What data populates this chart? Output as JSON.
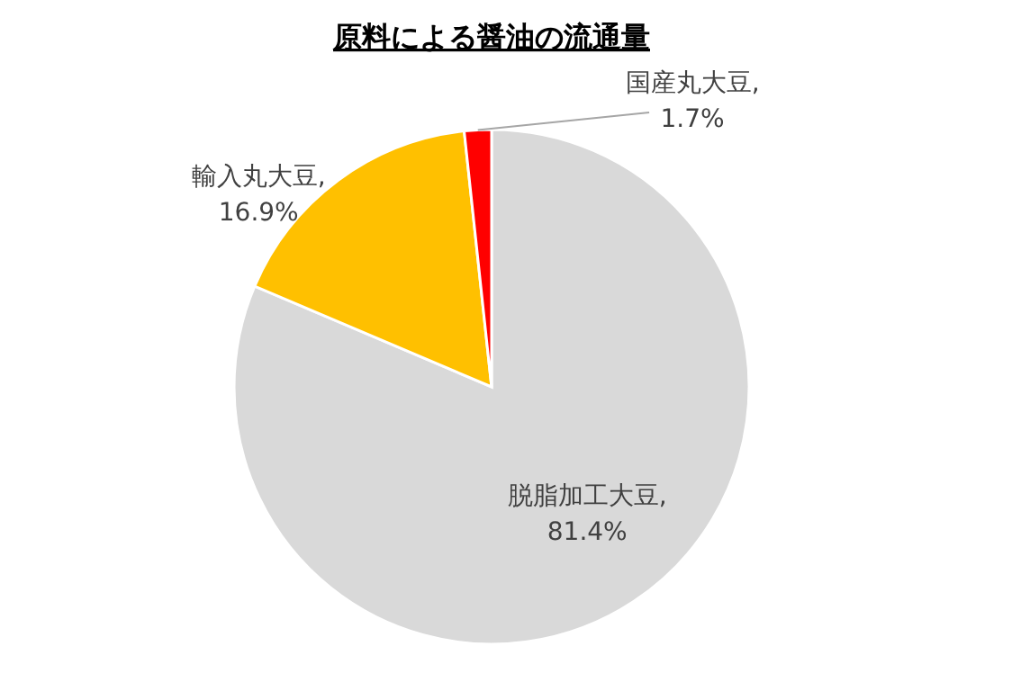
{
  "chart_data": {
    "type": "pie",
    "title": "原料による醤油の流通量",
    "categories": [
      "脱脂加工大豆",
      "輸入丸大豆",
      "国産丸大豆"
    ],
    "values": [
      81.4,
      16.9,
      1.7
    ],
    "value_labels": [
      ",\n81.4%",
      ",\n16.9%",
      ",\n1.7%"
    ],
    "colors": [
      "#d9d9d9",
      "#ffc000",
      "#ff0000"
    ]
  }
}
